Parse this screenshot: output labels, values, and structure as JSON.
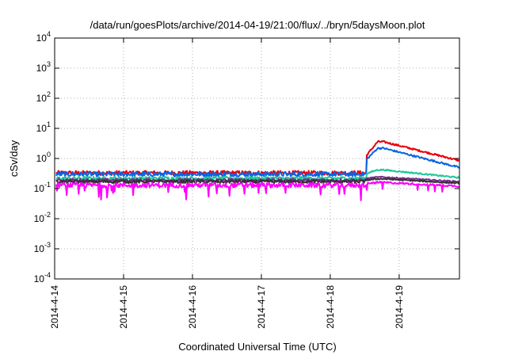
{
  "chart_data": {
    "type": "line",
    "title": "/data/run/goesPlots/archive/2014-04-19/21:00/flux/../bryn/5daysMoon.plot",
    "xlabel": "Coordinated Universal Time (UTC)",
    "ylabel": "cSv/day",
    "yscale": "log",
    "ylim": [
      0.0001,
      10000
    ],
    "yticks": [
      {
        "base": "10",
        "exp": "-4",
        "value": 0.0001
      },
      {
        "base": "10",
        "exp": "-3",
        "value": 0.001
      },
      {
        "base": "10",
        "exp": "-2",
        "value": 0.01
      },
      {
        "base": "10",
        "exp": "-1",
        "value": 0.1
      },
      {
        "base": "10",
        "exp": "0",
        "value": 1
      },
      {
        "base": "10",
        "exp": "1",
        "value": 10
      },
      {
        "base": "10",
        "exp": "2",
        "value": 100
      },
      {
        "base": "10",
        "exp": "3",
        "value": 1000
      },
      {
        "base": "10",
        "exp": "4",
        "value": 10000
      }
    ],
    "xlim": [
      "2014-04-14 00:00",
      "2014-04-19 21:00"
    ],
    "xticks": [
      "2014-4-14",
      "2014-4-15",
      "2014-4-16",
      "2014-4-17",
      "2014-4-18",
      "2014-4-19"
    ],
    "grid": true,
    "event_onset": "2014-04-18 12:30",
    "series": [
      {
        "color": "#e8000b",
        "baseline": 0.33,
        "peak": 3.6,
        "end": 0.85,
        "noise": 0.17,
        "dips": false
      },
      {
        "color": "#0a64e6",
        "baseline": 0.3,
        "peak": 2.2,
        "end": 0.5,
        "noise": 0.17,
        "dips": false
      },
      {
        "color": "#1fc79a",
        "baseline": 0.22,
        "peak": 0.42,
        "end": 0.23,
        "noise": 0.13,
        "dips": false
      },
      {
        "color": "#7a2a8a",
        "baseline": 0.19,
        "peak": 0.24,
        "end": 0.17,
        "noise": 0.12,
        "dips": false
      },
      {
        "color": "#333333",
        "baseline": 0.17,
        "peak": 0.21,
        "end": 0.15,
        "noise": 0.12,
        "dips": false
      },
      {
        "color": "#ff00ff",
        "baseline": 0.13,
        "peak": 0.16,
        "end": 0.12,
        "noise": 0.18,
        "dips": true
      }
    ]
  }
}
